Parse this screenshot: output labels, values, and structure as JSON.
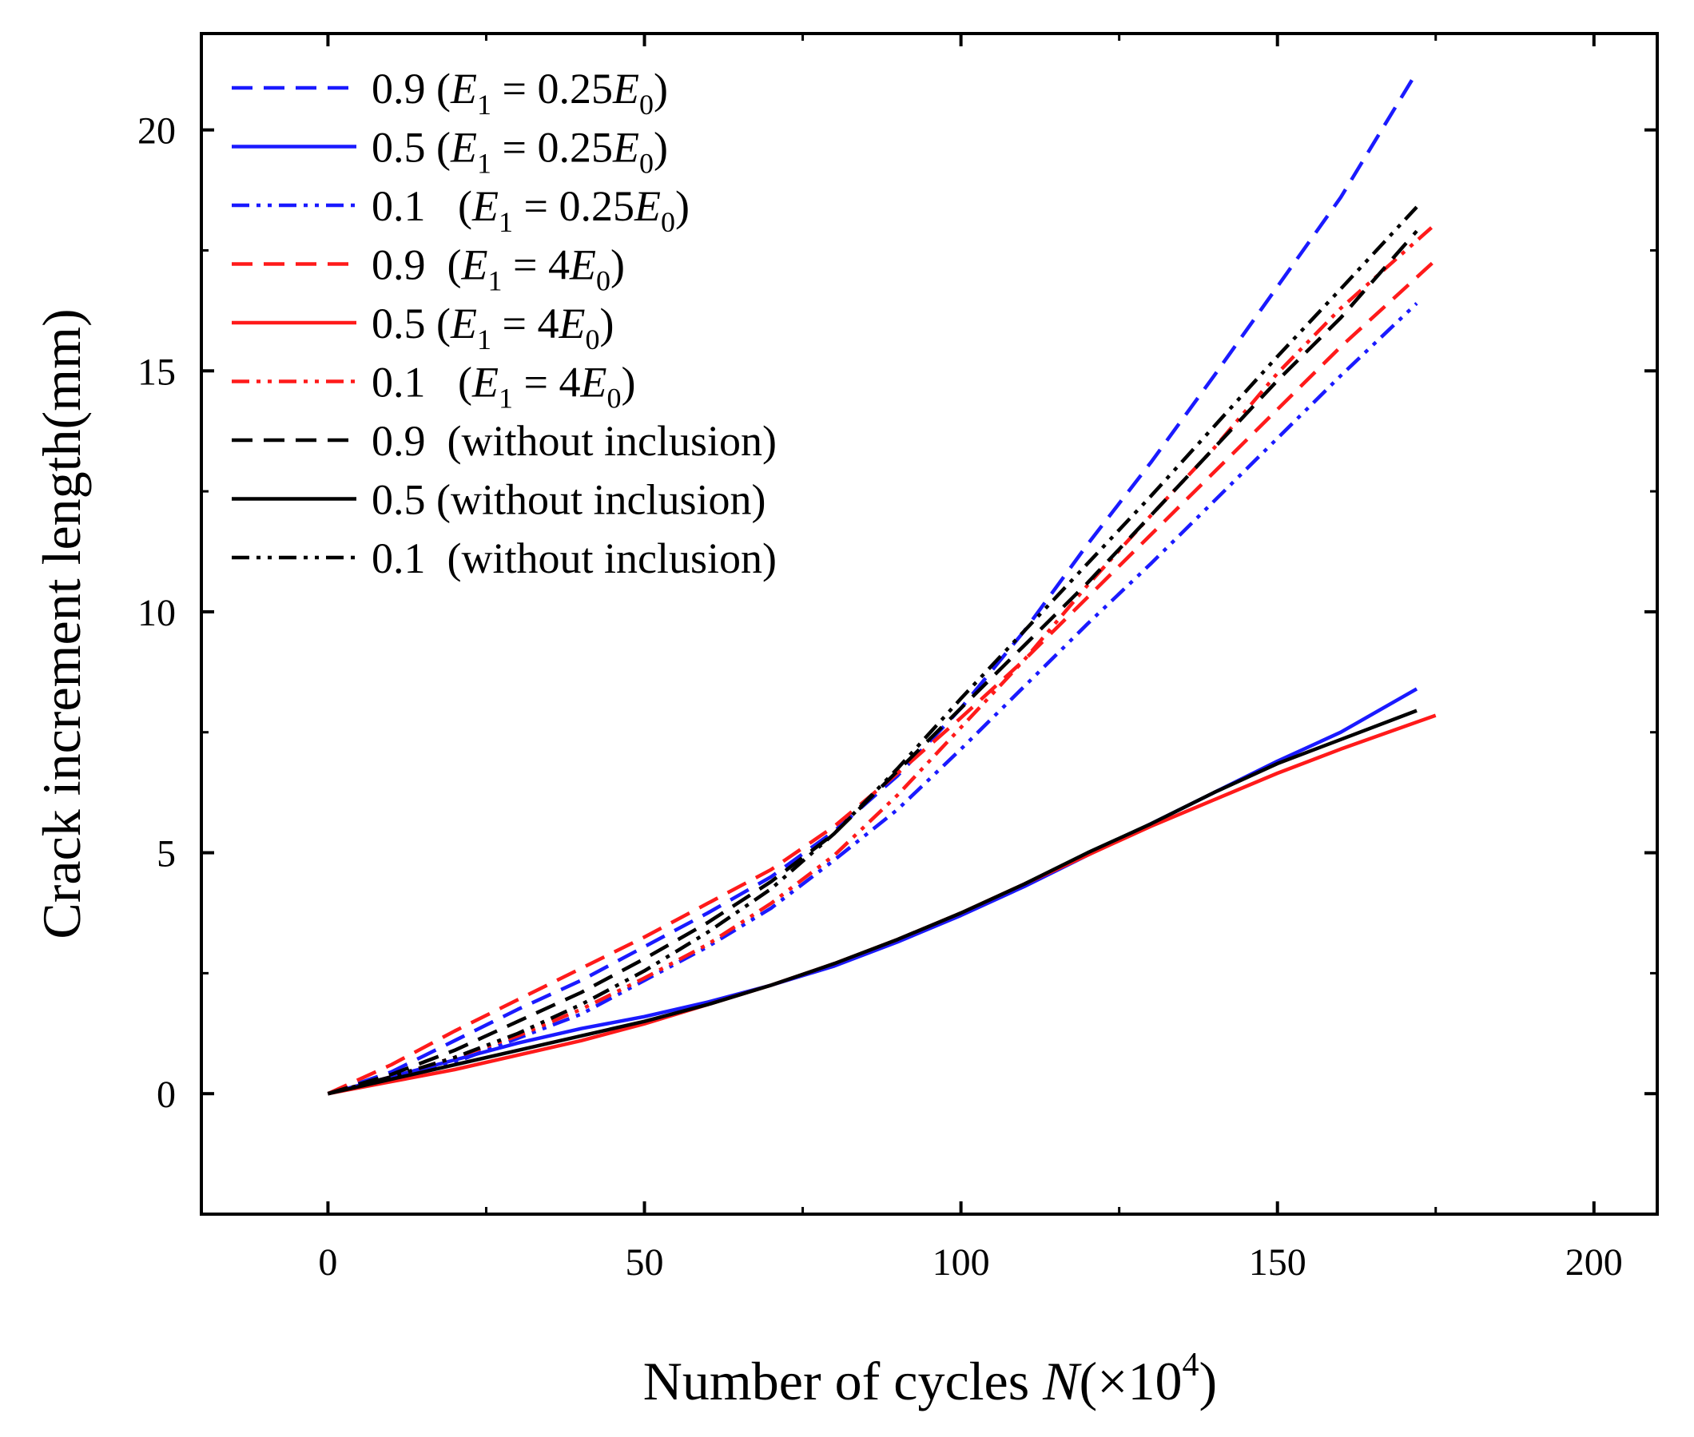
{
  "chart_data": {
    "type": "line",
    "title": "",
    "xlabel": {
      "main": "Number of cycles ",
      "var": "N",
      "open": "(×10",
      "sup": "4",
      "close": ")"
    },
    "ylabel": "Crack increment length(mm)",
    "xlim": [
      -20,
      210
    ],
    "ylim": [
      -2.5,
      22
    ],
    "xticks": [
      0,
      50,
      100,
      150,
      200
    ],
    "yticks": [
      0,
      5,
      10,
      15,
      20
    ],
    "xtick_labels": [
      "0",
      "50",
      "100",
      "150",
      "200"
    ],
    "ytick_labels": [
      "0",
      "5",
      "10",
      "15",
      "20"
    ],
    "legend_position": "top-left",
    "series": [
      {
        "name": "0.9 (E1 = 0.25E0)",
        "label": {
          "ratio": "0.9 ",
          "rhs": "0.25",
          "gap": ""
        },
        "color": "#1a1aff",
        "dash": "dashed",
        "x": [
          0,
          10,
          20,
          30,
          40,
          50,
          60,
          70,
          80,
          90,
          100,
          110,
          120,
          130,
          140,
          150,
          160,
          172
        ],
        "y": [
          0,
          0.45,
          1.1,
          1.75,
          2.35,
          3.05,
          3.75,
          4.5,
          5.45,
          6.6,
          8.0,
          9.6,
          11.4,
          13.1,
          14.9,
          16.75,
          18.6,
          21.2
        ]
      },
      {
        "name": "0.5 (E1 = 0.25E0)",
        "label": {
          "ratio": "0.5 ",
          "rhs": "0.25",
          "gap": ""
        },
        "color": "#1a1aff",
        "dash": "solid",
        "x": [
          0,
          10,
          20,
          30,
          40,
          50,
          60,
          70,
          80,
          90,
          100,
          110,
          120,
          130,
          140,
          150,
          160,
          172
        ],
        "y": [
          0,
          0.35,
          0.7,
          1.05,
          1.35,
          1.6,
          1.9,
          2.25,
          2.65,
          3.15,
          3.7,
          4.3,
          4.95,
          5.6,
          6.25,
          6.9,
          7.5,
          8.4
        ]
      },
      {
        "name": "0.1 (E1 = 0.25E0)",
        "label": {
          "ratio": " 0.1",
          "rhs": "0.25",
          "gap": "   "
        },
        "color": "#1a1aff",
        "dash": "dashdotdot",
        "x": [
          0,
          10,
          20,
          30,
          40,
          50,
          60,
          70,
          80,
          90,
          100,
          110,
          120,
          130,
          140,
          150,
          160,
          172
        ],
        "y": [
          0,
          0.3,
          0.65,
          1.15,
          1.65,
          2.35,
          3.05,
          3.85,
          4.85,
          5.9,
          7.15,
          8.45,
          9.75,
          11.0,
          12.3,
          13.6,
          14.9,
          16.4
        ]
      },
      {
        "name": "0.9 (E1 = 4E0)",
        "label": {
          "ratio": "0.9 ",
          "rhs": "4",
          "gap": " "
        },
        "color": "#ff1a1a",
        "dash": "dashed",
        "x": [
          0,
          10,
          20,
          30,
          40,
          50,
          60,
          70,
          80,
          90,
          100,
          110,
          120,
          130,
          140,
          150,
          160,
          175
        ],
        "y": [
          0,
          0.6,
          1.3,
          1.95,
          2.6,
          3.25,
          3.95,
          4.65,
          5.55,
          6.65,
          7.8,
          9.0,
          10.3,
          11.6,
          12.9,
          14.2,
          15.5,
          17.3
        ]
      },
      {
        "name": "0.5 (E1 = 4E0)",
        "label": {
          "ratio": "0.5 ",
          "rhs": "4",
          "gap": ""
        },
        "color": "#ff1a1a",
        "dash": "solid",
        "x": [
          0,
          10,
          20,
          30,
          40,
          50,
          60,
          70,
          80,
          90,
          100,
          110,
          120,
          130,
          140,
          150,
          160,
          175
        ],
        "y": [
          0,
          0.25,
          0.5,
          0.8,
          1.1,
          1.45,
          1.85,
          2.25,
          2.7,
          3.2,
          3.75,
          4.35,
          4.95,
          5.55,
          6.1,
          6.65,
          7.15,
          7.85
        ]
      },
      {
        "name": "0.1 (E1 = 4E0)",
        "label": {
          "ratio": "0.1",
          "rhs": "4",
          "gap": "   "
        },
        "color": "#ff1a1a",
        "dash": "dashdotdot",
        "x": [
          0,
          10,
          20,
          30,
          40,
          50,
          60,
          70,
          80,
          90,
          100,
          110,
          120,
          130,
          140,
          150,
          160,
          175
        ],
        "y": [
          0,
          0.35,
          0.75,
          1.2,
          1.75,
          2.4,
          3.1,
          3.95,
          4.95,
          6.2,
          7.6,
          9.0,
          10.55,
          12.0,
          13.4,
          14.95,
          16.3,
          18.05
        ]
      },
      {
        "name": "0.9 (without inclusion)",
        "label": {
          "ratio": "0.9",
          "text": "(without inclusion)",
          "gap": "  "
        },
        "color": "#000000",
        "dash": "dashed",
        "x": [
          0,
          10,
          20,
          30,
          40,
          50,
          60,
          70,
          80,
          90,
          100,
          110,
          120,
          130,
          140,
          150,
          160,
          172
        ],
        "y": [
          0,
          0.4,
          0.9,
          1.5,
          2.1,
          2.8,
          3.55,
          4.4,
          5.4,
          6.7,
          8.0,
          9.3,
          10.6,
          12.0,
          13.4,
          14.8,
          16.1,
          17.9
        ]
      },
      {
        "name": "0.5 (without inclusion)",
        "label": {
          "ratio": "0.5 ",
          "text": "(without inclusion)",
          "gap": ""
        },
        "color": "#000000",
        "dash": "solid",
        "x": [
          0,
          10,
          20,
          30,
          40,
          50,
          60,
          70,
          80,
          90,
          100,
          110,
          120,
          130,
          140,
          150,
          160,
          172
        ],
        "y": [
          0,
          0.3,
          0.6,
          0.9,
          1.2,
          1.5,
          1.85,
          2.25,
          2.7,
          3.2,
          3.75,
          4.35,
          5.0,
          5.6,
          6.25,
          6.85,
          7.35,
          7.95
        ]
      },
      {
        "name": "0.1 (without inclusion)",
        "label": {
          "ratio": "0.1",
          "text": "(without inclusion)",
          "gap": "  "
        },
        "color": "#000000",
        "dash": "dashdotdot",
        "x": [
          0,
          10,
          20,
          30,
          40,
          50,
          60,
          70,
          80,
          90,
          100,
          110,
          120,
          130,
          140,
          150,
          160,
          172
        ],
        "y": [
          0,
          0.35,
          0.75,
          1.25,
          1.85,
          2.55,
          3.35,
          4.25,
          5.4,
          6.75,
          8.2,
          9.6,
          11.0,
          12.4,
          13.85,
          15.3,
          16.7,
          18.4
        ]
      }
    ]
  }
}
